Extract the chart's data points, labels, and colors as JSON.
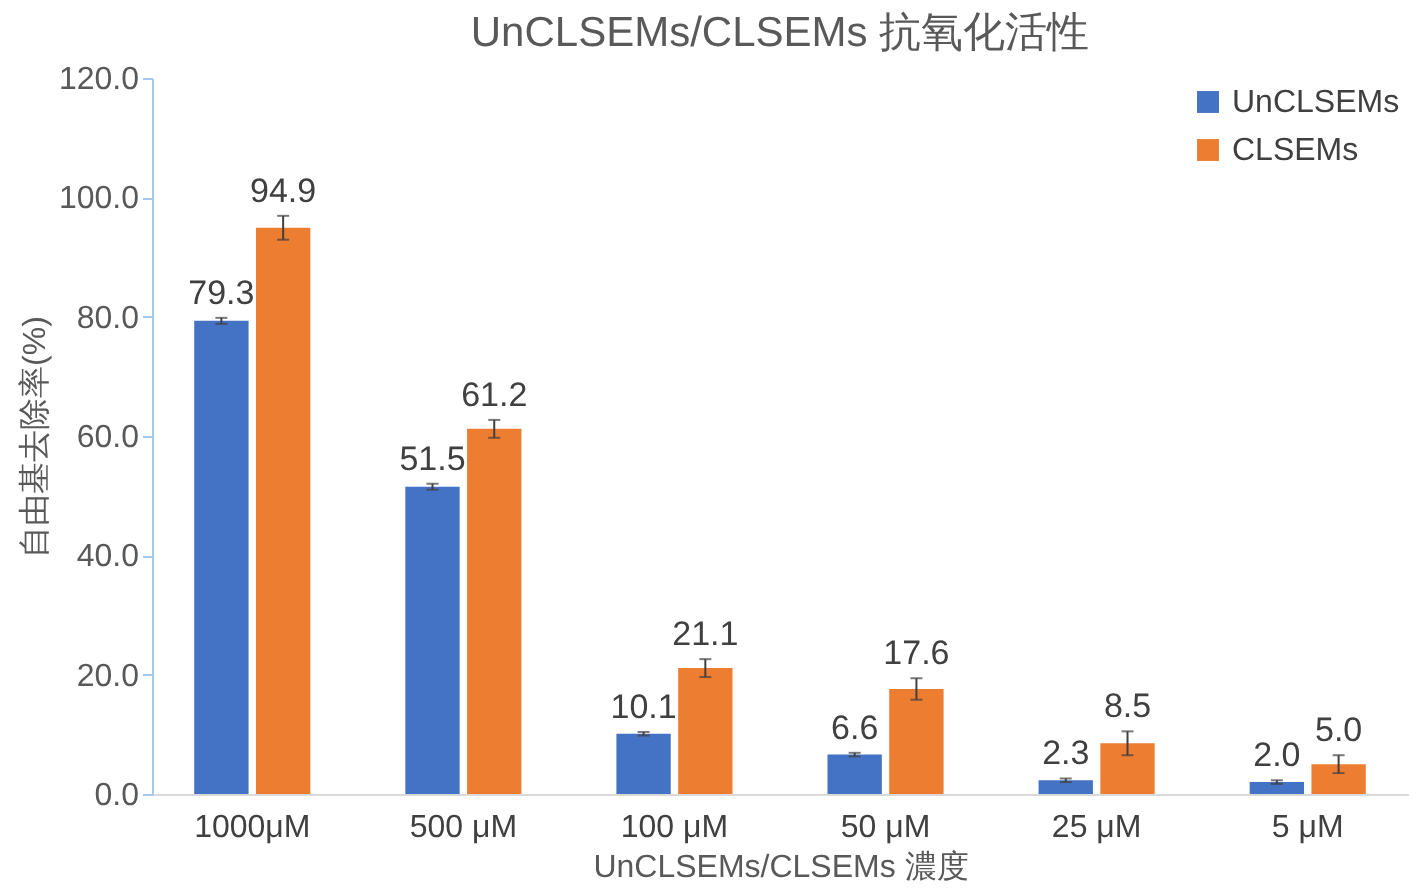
{
  "chart_data": {
    "type": "bar",
    "title": "UnCLSEMs/CLSEMs 抗氧化活性",
    "xlabel": "UnCLSEMs/CLSEMs 濃度",
    "ylabel": "自由基去除率(%)",
    "categories": [
      "1000μM",
      "500 μM",
      "100 μM",
      "50 μM",
      "25 μM",
      "5 μM"
    ],
    "series": [
      {
        "name": "UnCLSEMs",
        "color": "#4472c4",
        "values": [
          79.3,
          51.5,
          10.1,
          6.6,
          2.3,
          2.0
        ],
        "errors": [
          0.5,
          0.5,
          0.3,
          0.3,
          0.3,
          0.3
        ],
        "value_labels": [
          "79.3",
          "51.5",
          "10.1",
          "6.6",
          "2.3",
          "2.0"
        ]
      },
      {
        "name": "CLSEMs",
        "color": "#ed7d31",
        "values": [
          94.9,
          61.2,
          21.1,
          17.6,
          8.5,
          5.0
        ],
        "errors": [
          2.0,
          1.5,
          1.5,
          1.8,
          2.0,
          1.5
        ],
        "value_labels": [
          "94.9",
          "61.2",
          "21.1",
          "17.6",
          "8.5",
          "5.0"
        ]
      }
    ],
    "ylim": [
      0,
      120
    ],
    "yticks": [
      {
        "value": 0,
        "label": "0.0"
      },
      {
        "value": 20,
        "label": "20.0"
      },
      {
        "value": 40,
        "label": "40.0"
      },
      {
        "value": 60,
        "label": "60.0"
      },
      {
        "value": 80,
        "label": "80.0"
      },
      {
        "value": 100,
        "label": "100.0"
      },
      {
        "value": 120,
        "label": "120.0"
      }
    ],
    "grid": false,
    "legend": "top right"
  }
}
